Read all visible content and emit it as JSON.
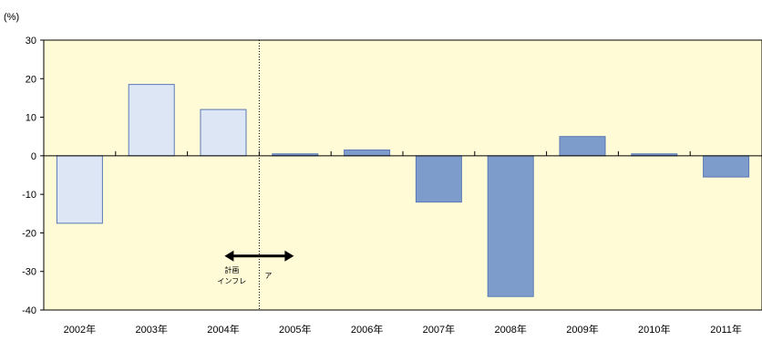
{
  "chart_data": {
    "type": "bar",
    "unit_label": "(%)",
    "categories": [
      "2002年",
      "2003年",
      "2004年",
      "2005年",
      "2006年",
      "2007年",
      "2008年",
      "2009年",
      "2010年",
      "2011年"
    ],
    "values": [
      -17.5,
      18.5,
      12,
      0.5,
      1.5,
      -12,
      -36.5,
      5,
      0.5,
      -5.5
    ],
    "bar_styles": [
      "light",
      "light",
      "light",
      "dark",
      "dark",
      "dark",
      "dark",
      "dark",
      "dark",
      "dark"
    ],
    "ylim": [
      -40,
      30
    ],
    "yticks": [
      30,
      20,
      10,
      0,
      -10,
      -20,
      -30,
      -40
    ],
    "grid": false,
    "colors": {
      "plot_background": "#fffbd6",
      "light_bar": "#dde6f4",
      "dark_bar": "#7d9ccb",
      "bar_border": "#5a78b5",
      "axis": "#000000"
    },
    "annotation": {
      "left_label_line1": "計画",
      "left_label_line2": "インフレ",
      "right_label": "ア"
    }
  }
}
